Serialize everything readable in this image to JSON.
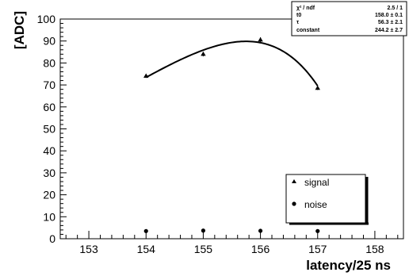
{
  "chart_data": {
    "type": "scatter",
    "xlabel": "latency/25 ns",
    "ylabel": "[ADC]",
    "xlim": [
      152.5,
      158.5
    ],
    "ylim": [
      0,
      100
    ],
    "x_ticks": [
      "153",
      "154",
      "155",
      "156",
      "157",
      "158"
    ],
    "y_ticks": [
      "0",
      "10",
      "20",
      "30",
      "40",
      "50",
      "60",
      "70",
      "80",
      "90",
      "100"
    ],
    "legend_position": "bottom-right",
    "series": [
      {
        "name": "signal",
        "marker": "triangle",
        "x": [
          154,
          155,
          156,
          157
        ],
        "y": [
          74,
          84,
          90.5,
          68.5
        ],
        "yerr": [
          0.6,
          1.0,
          1.2,
          0.8
        ]
      },
      {
        "name": "noise",
        "marker": "circle",
        "x": [
          154,
          155,
          156,
          157
        ],
        "y": [
          3.5,
          3.7,
          3.6,
          3.5
        ]
      }
    ],
    "fit": {
      "x_range": [
        154,
        157
      ],
      "params": {
        "t0": 158.0,
        "tau": 56.3,
        "constant": 244.2
      }
    },
    "stats_box": [
      {
        "name": "χ² / ndf",
        "value": "2.5 / 1"
      },
      {
        "name": "t0",
        "value": "158.0 ±  0.1"
      },
      {
        "name": "τ",
        "value": "56.3 ±  2.1"
      },
      {
        "name": "constant",
        "value": "244.2 ±  2.7"
      }
    ]
  }
}
